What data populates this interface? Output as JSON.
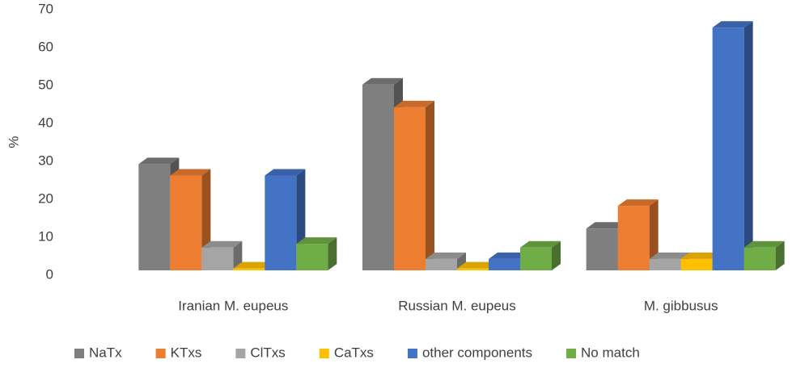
{
  "chart_data": {
    "type": "bar3d",
    "y_label": "%",
    "categories": [
      "Iranian M. eupeus",
      "Russian M. eupeus",
      "M. gibbusus"
    ],
    "series": [
      {
        "name": "NaTx",
        "color": "#7f7f7f",
        "values": [
          28,
          49,
          11
        ]
      },
      {
        "name": "KTxs",
        "color": "#ed7d31",
        "values": [
          25,
          43,
          17
        ]
      },
      {
        "name": "ClTxs",
        "color": "#a5a5a5",
        "values": [
          6,
          3,
          3
        ]
      },
      {
        "name": "CaTxs",
        "color": "#ffc000",
        "values": [
          0.5,
          0.5,
          3
        ]
      },
      {
        "name": "other components",
        "color": "#4472c4",
        "values": [
          25,
          3,
          64
        ]
      },
      {
        "name": "No match",
        "color": "#70ad47",
        "values": [
          7,
          6,
          6
        ]
      }
    ],
    "ylim": [
      0,
      70
    ],
    "yticks": [
      0,
      10,
      20,
      30,
      40,
      50,
      60,
      70
    ],
    "legend": "bottom"
  }
}
